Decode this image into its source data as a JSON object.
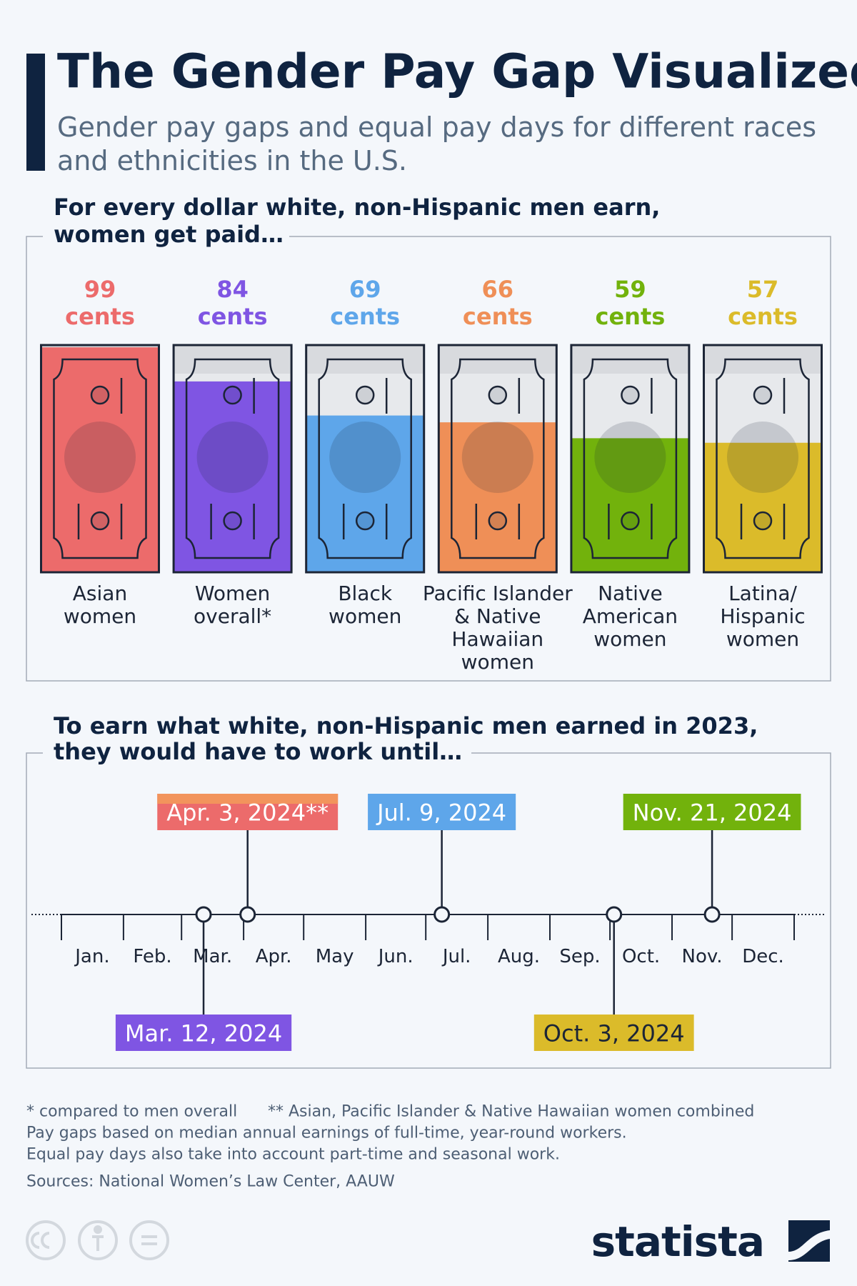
{
  "header": {
    "title": "The Gender Pay Gap Visualized",
    "subtitle": "Gender pay gaps and equal pay days for different races\nand ethnicities in the U.S."
  },
  "chart_data": [
    {
      "type": "bar",
      "title": "For every dollar white, non-Hispanic men earn,\nwomen get paid…",
      "categories": [
        "Asian\nwomen",
        "Women\noverall*",
        "Black\nwomen",
        "Pacific Islander\n& Native\nHawaiian\nwomen",
        "Native\nAmerican\nwomen",
        "Latina/\nHispanic\nwomen"
      ],
      "values": [
        99,
        84,
        69,
        66,
        59,
        57
      ],
      "value_labels": [
        "99\ncents",
        "84\ncents",
        "69\ncents",
        "66\ncents",
        "59\ncents",
        "57\ncents"
      ],
      "colors": [
        "#ec6b6b",
        "#7f55e3",
        "#5ea6ea",
        "#ef8f57",
        "#72b20c",
        "#dbbb2a"
      ],
      "ylim": [
        0,
        100
      ]
    },
    {
      "type": "timeline",
      "title": "To earn what white, non-Hispanic men earned in 2023,\nthey would have to work until…",
      "categories": [
        "Jan.",
        "Feb.",
        "Mar.",
        "Apr.",
        "May",
        "Jun.",
        "Jul.",
        "Aug.",
        "Sep.",
        "Oct.",
        "Nov.",
        "Dec."
      ],
      "xlim": [
        "2024-01-01",
        "2025-01-01"
      ],
      "events": [
        {
          "date": "2024-03-12",
          "label": "Mar. 12, 2024",
          "color": "#7f55e3",
          "text_color": "#ffffff",
          "position": "below"
        },
        {
          "date": "2024-04-03",
          "label": "Apr. 3, 2024**",
          "color": "#ec6b6b",
          "stripe": "#f2945c",
          "text_color": "#ffffff",
          "position": "above"
        },
        {
          "date": "2024-07-09",
          "label": "Jul. 9, 2024",
          "color": "#5ea6ea",
          "text_color": "#ffffff",
          "position": "above"
        },
        {
          "date": "2024-10-03",
          "label": "Oct. 3, 2024",
          "color": "#dbbb2a",
          "text_color": "#1c2536",
          "position": "below"
        },
        {
          "date": "2024-11-21",
          "label": "Nov. 21, 2024",
          "color": "#72b20c",
          "text_color": "#ffffff",
          "position": "above"
        }
      ]
    }
  ],
  "footer": {
    "notes": [
      "* compared to men overall",
      "** Asian, Pacific Islander & Native Hawaiian women combined",
      "Pay gaps based on median annual earnings of full-time, year-round workers.",
      "Equal pay days also take into account part-time and seasonal work."
    ],
    "source": "Sources: National Women’s Law Center, AAUW",
    "logo": "statista"
  }
}
